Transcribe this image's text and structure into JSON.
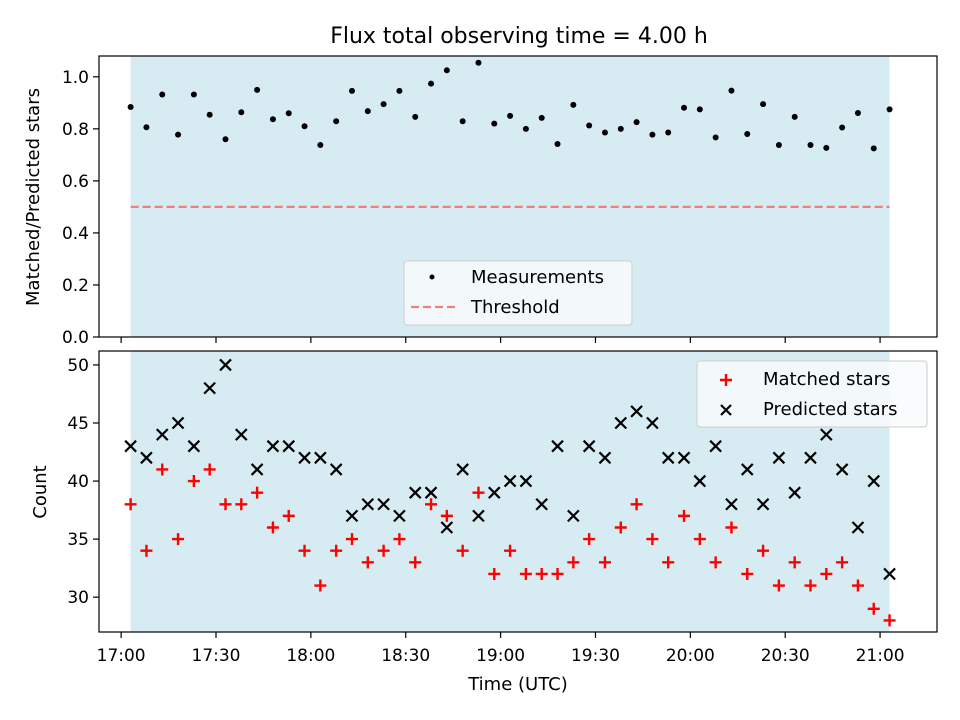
{
  "chart_data": [
    {
      "type": "scatter",
      "title": "Flux total observing time = 4.00 h",
      "ylabel": "Matched/Predicted stars",
      "xlabel": "",
      "ylim": [
        0,
        1.08
      ],
      "yticks": [
        0.0,
        0.2,
        0.4,
        0.6,
        0.8,
        1.0
      ],
      "ytick_labels": [
        "0.0",
        "0.2",
        "0.4",
        "0.6",
        "0.8",
        "1.0"
      ],
      "x_range": [
        "16:53",
        "21:18"
      ],
      "shaded_span": [
        "17:03",
        "21:03"
      ],
      "shade_color": "#add8e6",
      "grid": false,
      "legend_position": "lower center",
      "series": [
        {
          "name": "Measurements",
          "marker": "dot",
          "color": "#000000",
          "x": [
            "17:03",
            "17:08",
            "17:13",
            "17:18",
            "17:23",
            "17:28",
            "17:33",
            "17:38",
            "17:43",
            "17:48",
            "17:53",
            "17:58",
            "18:03",
            "18:08",
            "18:13",
            "18:18",
            "18:23",
            "18:28",
            "18:33",
            "18:38",
            "18:43",
            "18:48",
            "18:53",
            "18:58",
            "19:03",
            "19:08",
            "19:13",
            "19:18",
            "19:23",
            "19:28",
            "19:33",
            "19:38",
            "19:43",
            "19:48",
            "19:53",
            "19:58",
            "20:03",
            "20:08",
            "20:13",
            "20:18",
            "20:23",
            "20:28",
            "20:33",
            "20:38",
            "20:43",
            "20:48",
            "20:53",
            "20:58",
            "21:03"
          ],
          "y": [
            0.884,
            0.806,
            0.932,
            0.778,
            0.932,
            0.854,
            0.76,
            0.864,
            0.95,
            0.837,
            0.86,
            0.81,
            0.738,
            0.829,
            0.946,
            0.868,
            0.895,
            0.946,
            0.846,
            0.974,
            1.025,
            0.829,
            1.054,
            0.82,
            0.85,
            0.8,
            0.842,
            0.742,
            0.892,
            0.813,
            0.786,
            0.8,
            0.826,
            0.778,
            0.786,
            0.881,
            0.875,
            0.767,
            0.947,
            0.78,
            0.895,
            0.738,
            0.846,
            0.738,
            0.727,
            0.805,
            0.861,
            0.725,
            0.875
          ]
        },
        {
          "name": "Threshold",
          "style": "dashed",
          "color": "#f08080",
          "x": [
            "17:03",
            "21:03"
          ],
          "y": [
            0.5,
            0.5
          ]
        }
      ]
    },
    {
      "type": "scatter",
      "title": "",
      "ylabel": "Count",
      "xlabel": "Time (UTC)",
      "ylim": [
        27,
        51.2
      ],
      "yticks": [
        30,
        35,
        40,
        45,
        50
      ],
      "ytick_labels": [
        "30",
        "35",
        "40",
        "45",
        "50"
      ],
      "x_range": [
        "16:53",
        "21:18"
      ],
      "xticks": [
        "17:00",
        "17:30",
        "18:00",
        "18:30",
        "19:00",
        "19:30",
        "20:00",
        "20:30",
        "21:00"
      ],
      "xtick_labels": [
        "17:00",
        "17:30",
        "18:00",
        "18:30",
        "19:00",
        "19:30",
        "20:00",
        "20:30",
        "21:00"
      ],
      "shaded_span": [
        "17:03",
        "21:03"
      ],
      "shade_color": "#add8e6",
      "grid": false,
      "legend_position": "upper right",
      "series": [
        {
          "name": "Matched stars",
          "marker": "plus",
          "color": "#ff0000",
          "x": [
            "17:03",
            "17:08",
            "17:13",
            "17:18",
            "17:23",
            "17:28",
            "17:33",
            "17:38",
            "17:43",
            "17:48",
            "17:53",
            "17:58",
            "18:03",
            "18:08",
            "18:13",
            "18:18",
            "18:23",
            "18:28",
            "18:33",
            "18:38",
            "18:43",
            "18:48",
            "18:53",
            "18:58",
            "19:03",
            "19:08",
            "19:13",
            "19:18",
            "19:23",
            "19:28",
            "19:33",
            "19:38",
            "19:43",
            "19:48",
            "19:53",
            "19:58",
            "20:03",
            "20:08",
            "20:13",
            "20:18",
            "20:23",
            "20:28",
            "20:33",
            "20:38",
            "20:43",
            "20:48",
            "20:53",
            "20:58",
            "21:03"
          ],
          "y": [
            38,
            34,
            41,
            35,
            40,
            41,
            38,
            38,
            39,
            36,
            37,
            34,
            31,
            34,
            35,
            33,
            34,
            35,
            33,
            38,
            37,
            34,
            39,
            32,
            34,
            32,
            32,
            32,
            33,
            35,
            33,
            36,
            38,
            35,
            33,
            37,
            35,
            33,
            36,
            32,
            34,
            31,
            33,
            31,
            32,
            33,
            31,
            29,
            28
          ]
        },
        {
          "name": "Predicted stars",
          "marker": "x",
          "color": "#000000",
          "x": [
            "17:03",
            "17:08",
            "17:13",
            "17:18",
            "17:23",
            "17:28",
            "17:33",
            "17:38",
            "17:43",
            "17:48",
            "17:53",
            "17:58",
            "18:03",
            "18:08",
            "18:13",
            "18:18",
            "18:23",
            "18:28",
            "18:33",
            "18:38",
            "18:43",
            "18:48",
            "18:53",
            "18:58",
            "19:03",
            "19:08",
            "19:13",
            "19:18",
            "19:23",
            "19:28",
            "19:33",
            "19:38",
            "19:43",
            "19:48",
            "19:53",
            "19:58",
            "20:03",
            "20:08",
            "20:13",
            "20:18",
            "20:23",
            "20:28",
            "20:33",
            "20:38",
            "20:43",
            "20:48",
            "20:53",
            "20:58",
            "21:03"
          ],
          "y": [
            43,
            42,
            44,
            45,
            43,
            48,
            50,
            44,
            41,
            43,
            43,
            42,
            42,
            41,
            37,
            38,
            38,
            37,
            39,
            39,
            36,
            41,
            37,
            39,
            40,
            40,
            38,
            43,
            37,
            43,
            42,
            45,
            46,
            45,
            42,
            42,
            40,
            43,
            38,
            41,
            38,
            42,
            39,
            42,
            44,
            41,
            36,
            40,
            32
          ]
        }
      ]
    }
  ]
}
